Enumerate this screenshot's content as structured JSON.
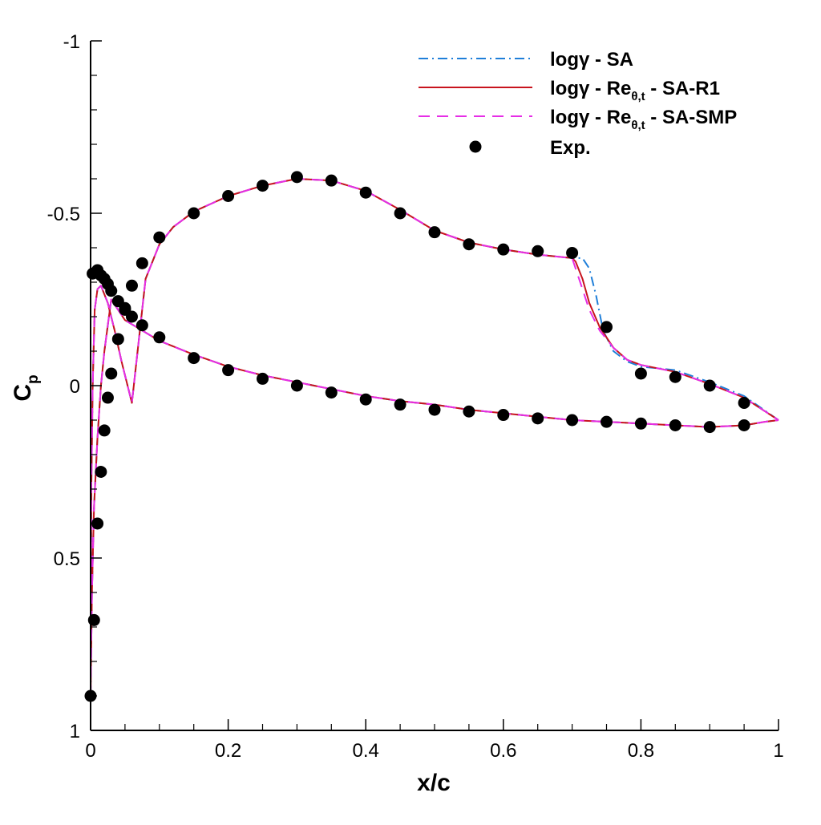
{
  "chart_data": {
    "type": "line",
    "title": "",
    "xlabel": "x/c",
    "ylabel": {
      "main": "C",
      "sub": "p"
    },
    "xlim": [
      0,
      1
    ],
    "ylim": [
      1,
      -1
    ],
    "y_inverted": true,
    "xticks": [
      {
        "value": 0,
        "label": "0"
      },
      {
        "value": 0.2,
        "label": "0.2"
      },
      {
        "value": 0.4,
        "label": "0.4"
      },
      {
        "value": 0.6,
        "label": "0.6"
      },
      {
        "value": 0.8,
        "label": "0.8"
      },
      {
        "value": 1,
        "label": "1"
      }
    ],
    "yticks": [
      {
        "value": -1,
        "label": "-1"
      },
      {
        "value": -0.5,
        "label": "-0.5"
      },
      {
        "value": 0,
        "label": "0"
      },
      {
        "value": 0.5,
        "label": "0.5"
      },
      {
        "value": 1,
        "label": "1"
      }
    ],
    "grid": false,
    "legend_position": "top-right",
    "colors": {
      "sa": "#1f7fd9",
      "sa_r1": "#c8141e",
      "sa_smp": "#e62ee6",
      "exp": "#000000"
    },
    "series": [
      {
        "name": "logγ - SA",
        "legend_parts": {
          "main": "logγ - SA",
          "sub": "",
          "tail": ""
        },
        "color": "#1f7fd9",
        "dash": "dashdot",
        "upper": [
          [
            0,
            0.9
          ],
          [
            0.001,
            0.3
          ],
          [
            0.003,
            0.0
          ],
          [
            0.006,
            -0.22
          ],
          [
            0.01,
            -0.28
          ],
          [
            0.015,
            -0.29
          ],
          [
            0.025,
            -0.24
          ],
          [
            0.035,
            -0.16
          ],
          [
            0.045,
            -0.07
          ],
          [
            0.06,
            0.05
          ],
          [
            0.08,
            -0.31
          ],
          [
            0.1,
            -0.41
          ],
          [
            0.12,
            -0.46
          ],
          [
            0.15,
            -0.505
          ],
          [
            0.2,
            -0.55
          ],
          [
            0.25,
            -0.58
          ],
          [
            0.3,
            -0.6
          ],
          [
            0.35,
            -0.595
          ],
          [
            0.4,
            -0.565
          ],
          [
            0.45,
            -0.51
          ],
          [
            0.5,
            -0.45
          ],
          [
            0.55,
            -0.415
          ],
          [
            0.6,
            -0.395
          ],
          [
            0.65,
            -0.38
          ],
          [
            0.7,
            -0.37
          ],
          [
            0.715,
            -0.37
          ],
          [
            0.725,
            -0.34
          ],
          [
            0.735,
            -0.26
          ],
          [
            0.745,
            -0.16
          ],
          [
            0.76,
            -0.1
          ],
          [
            0.78,
            -0.07
          ],
          [
            0.8,
            -0.055
          ],
          [
            0.85,
            -0.045
          ],
          [
            0.9,
            -0.01
          ],
          [
            0.95,
            0.03
          ],
          [
            1,
            0.1
          ]
        ],
        "lower": [
          [
            0,
            0.9
          ],
          [
            0.002,
            0.6
          ],
          [
            0.005,
            0.35
          ],
          [
            0.01,
            0.15
          ],
          [
            0.015,
            0.0
          ],
          [
            0.02,
            -0.1
          ],
          [
            0.03,
            -0.25
          ],
          [
            0.05,
            -0.19
          ],
          [
            0.075,
            -0.16
          ],
          [
            0.1,
            -0.13
          ],
          [
            0.15,
            -0.09
          ],
          [
            0.2,
            -0.055
          ],
          [
            0.25,
            -0.03
          ],
          [
            0.3,
            -0.01
          ],
          [
            0.35,
            0.01
          ],
          [
            0.4,
            0.03
          ],
          [
            0.45,
            0.045
          ],
          [
            0.5,
            0.055
          ],
          [
            0.55,
            0.07
          ],
          [
            0.6,
            0.08
          ],
          [
            0.65,
            0.09
          ],
          [
            0.7,
            0.1
          ],
          [
            0.75,
            0.105
          ],
          [
            0.8,
            0.11
          ],
          [
            0.85,
            0.115
          ],
          [
            0.9,
            0.12
          ],
          [
            0.95,
            0.115
          ],
          [
            0.98,
            0.105
          ],
          [
            1,
            0.1
          ]
        ]
      },
      {
        "name": "logγ - Reθ,t - SA-R1",
        "legend_parts": {
          "main": "logγ - Re",
          "sub": "θ,t",
          "tail": " - SA-R1"
        },
        "color": "#c8141e",
        "dash": "solid",
        "upper": [
          [
            0,
            0.9
          ],
          [
            0.001,
            0.3
          ],
          [
            0.003,
            0.0
          ],
          [
            0.006,
            -0.22
          ],
          [
            0.01,
            -0.28
          ],
          [
            0.015,
            -0.29
          ],
          [
            0.025,
            -0.24
          ],
          [
            0.035,
            -0.16
          ],
          [
            0.045,
            -0.07
          ],
          [
            0.06,
            0.05
          ],
          [
            0.08,
            -0.31
          ],
          [
            0.1,
            -0.41
          ],
          [
            0.12,
            -0.46
          ],
          [
            0.15,
            -0.505
          ],
          [
            0.2,
            -0.55
          ],
          [
            0.25,
            -0.58
          ],
          [
            0.3,
            -0.6
          ],
          [
            0.35,
            -0.595
          ],
          [
            0.4,
            -0.565
          ],
          [
            0.45,
            -0.51
          ],
          [
            0.5,
            -0.45
          ],
          [
            0.55,
            -0.415
          ],
          [
            0.6,
            -0.395
          ],
          [
            0.65,
            -0.38
          ],
          [
            0.7,
            -0.37
          ],
          [
            0.705,
            -0.36
          ],
          [
            0.715,
            -0.31
          ],
          [
            0.725,
            -0.24
          ],
          [
            0.74,
            -0.17
          ],
          [
            0.76,
            -0.11
          ],
          [
            0.78,
            -0.075
          ],
          [
            0.8,
            -0.06
          ],
          [
            0.85,
            -0.04
          ],
          [
            0.9,
            -0.005
          ],
          [
            0.95,
            0.035
          ],
          [
            1,
            0.1
          ]
        ],
        "lower": [
          [
            0,
            0.9
          ],
          [
            0.002,
            0.6
          ],
          [
            0.005,
            0.35
          ],
          [
            0.01,
            0.15
          ],
          [
            0.015,
            0.0
          ],
          [
            0.02,
            -0.1
          ],
          [
            0.03,
            -0.25
          ],
          [
            0.05,
            -0.19
          ],
          [
            0.075,
            -0.16
          ],
          [
            0.1,
            -0.13
          ],
          [
            0.15,
            -0.09
          ],
          [
            0.2,
            -0.055
          ],
          [
            0.25,
            -0.03
          ],
          [
            0.3,
            -0.01
          ],
          [
            0.35,
            0.01
          ],
          [
            0.4,
            0.03
          ],
          [
            0.45,
            0.045
          ],
          [
            0.5,
            0.055
          ],
          [
            0.55,
            0.07
          ],
          [
            0.6,
            0.08
          ],
          [
            0.65,
            0.09
          ],
          [
            0.7,
            0.1
          ],
          [
            0.75,
            0.105
          ],
          [
            0.8,
            0.11
          ],
          [
            0.85,
            0.115
          ],
          [
            0.9,
            0.12
          ],
          [
            0.95,
            0.115
          ],
          [
            0.98,
            0.105
          ],
          [
            1,
            0.1
          ]
        ]
      },
      {
        "name": "logγ - Reθ,t - SA-SMP",
        "legend_parts": {
          "main": "logγ - Re",
          "sub": "θ,t",
          "tail": " - SA-SMP"
        },
        "color": "#e62ee6",
        "dash": "dashed",
        "upper": [
          [
            0,
            0.9
          ],
          [
            0.001,
            0.3
          ],
          [
            0.003,
            0.0
          ],
          [
            0.006,
            -0.22
          ],
          [
            0.01,
            -0.28
          ],
          [
            0.015,
            -0.29
          ],
          [
            0.025,
            -0.24
          ],
          [
            0.035,
            -0.16
          ],
          [
            0.045,
            -0.07
          ],
          [
            0.06,
            0.05
          ],
          [
            0.08,
            -0.31
          ],
          [
            0.1,
            -0.41
          ],
          [
            0.12,
            -0.46
          ],
          [
            0.15,
            -0.505
          ],
          [
            0.2,
            -0.55
          ],
          [
            0.25,
            -0.58
          ],
          [
            0.3,
            -0.6
          ],
          [
            0.35,
            -0.595
          ],
          [
            0.4,
            -0.565
          ],
          [
            0.45,
            -0.51
          ],
          [
            0.5,
            -0.45
          ],
          [
            0.55,
            -0.415
          ],
          [
            0.6,
            -0.395
          ],
          [
            0.65,
            -0.38
          ],
          [
            0.7,
            -0.37
          ],
          [
            0.705,
            -0.34
          ],
          [
            0.715,
            -0.28
          ],
          [
            0.725,
            -0.22
          ],
          [
            0.74,
            -0.16
          ],
          [
            0.76,
            -0.11
          ],
          [
            0.78,
            -0.075
          ],
          [
            0.8,
            -0.06
          ],
          [
            0.85,
            -0.04
          ],
          [
            0.9,
            -0.005
          ],
          [
            0.95,
            0.035
          ],
          [
            1,
            0.1
          ]
        ],
        "lower": [
          [
            0,
            0.9
          ],
          [
            0.002,
            0.6
          ],
          [
            0.005,
            0.35
          ],
          [
            0.01,
            0.15
          ],
          [
            0.015,
            0.0
          ],
          [
            0.02,
            -0.1
          ],
          [
            0.03,
            -0.25
          ],
          [
            0.05,
            -0.19
          ],
          [
            0.075,
            -0.16
          ],
          [
            0.1,
            -0.13
          ],
          [
            0.15,
            -0.09
          ],
          [
            0.2,
            -0.055
          ],
          [
            0.25,
            -0.03
          ],
          [
            0.3,
            -0.01
          ],
          [
            0.35,
            0.01
          ],
          [
            0.4,
            0.03
          ],
          [
            0.45,
            0.045
          ],
          [
            0.5,
            0.055
          ],
          [
            0.55,
            0.07
          ],
          [
            0.6,
            0.08
          ],
          [
            0.65,
            0.09
          ],
          [
            0.7,
            0.1
          ],
          [
            0.75,
            0.105
          ],
          [
            0.8,
            0.11
          ],
          [
            0.85,
            0.115
          ],
          [
            0.9,
            0.12
          ],
          [
            0.95,
            0.115
          ],
          [
            0.98,
            0.105
          ],
          [
            1,
            0.1
          ]
        ]
      }
    ],
    "experimental": {
      "name": "Exp.",
      "color": "#000000",
      "points": [
        [
          0,
          0.9
        ],
        [
          0.005,
          0.68
        ],
        [
          0.01,
          0.4
        ],
        [
          0.015,
          0.25
        ],
        [
          0.02,
          0.13
        ],
        [
          0.025,
          0.035
        ],
        [
          0.03,
          -0.035
        ],
        [
          0.04,
          -0.135
        ],
        [
          0.05,
          -0.225
        ],
        [
          0.06,
          -0.29
        ],
        [
          0.075,
          -0.355
        ],
        [
          0.1,
          -0.43
        ],
        [
          0.15,
          -0.5
        ],
        [
          0.2,
          -0.55
        ],
        [
          0.25,
          -0.58
        ],
        [
          0.3,
          -0.605
        ],
        [
          0.35,
          -0.595
        ],
        [
          0.4,
          -0.56
        ],
        [
          0.45,
          -0.5
        ],
        [
          0.5,
          -0.445
        ],
        [
          0.55,
          -0.41
        ],
        [
          0.6,
          -0.395
        ],
        [
          0.65,
          -0.39
        ],
        [
          0.7,
          -0.385
        ],
        [
          0.75,
          -0.17
        ],
        [
          0.8,
          -0.035
        ],
        [
          0.85,
          -0.025
        ],
        [
          0.9,
          0.0
        ],
        [
          0.95,
          0.05
        ],
        [
          0.003,
          -0.325
        ],
        [
          0.01,
          -0.335
        ],
        [
          0.015,
          -0.32
        ],
        [
          0.02,
          -0.31
        ],
        [
          0.025,
          -0.295
        ],
        [
          0.03,
          -0.275
        ],
        [
          0.04,
          -0.245
        ],
        [
          0.05,
          -0.22
        ],
        [
          0.06,
          -0.2
        ],
        [
          0.075,
          -0.175
        ],
        [
          0.1,
          -0.14
        ],
        [
          0.15,
          -0.08
        ],
        [
          0.2,
          -0.045
        ],
        [
          0.25,
          -0.02
        ],
        [
          0.3,
          0.0
        ],
        [
          0.35,
          0.02
        ],
        [
          0.4,
          0.04
        ],
        [
          0.45,
          0.055
        ],
        [
          0.5,
          0.07
        ],
        [
          0.55,
          0.075
        ],
        [
          0.6,
          0.085
        ],
        [
          0.65,
          0.095
        ],
        [
          0.7,
          0.1
        ],
        [
          0.75,
          0.105
        ],
        [
          0.8,
          0.11
        ],
        [
          0.85,
          0.115
        ],
        [
          0.9,
          0.12
        ],
        [
          0.95,
          0.115
        ]
      ]
    }
  }
}
